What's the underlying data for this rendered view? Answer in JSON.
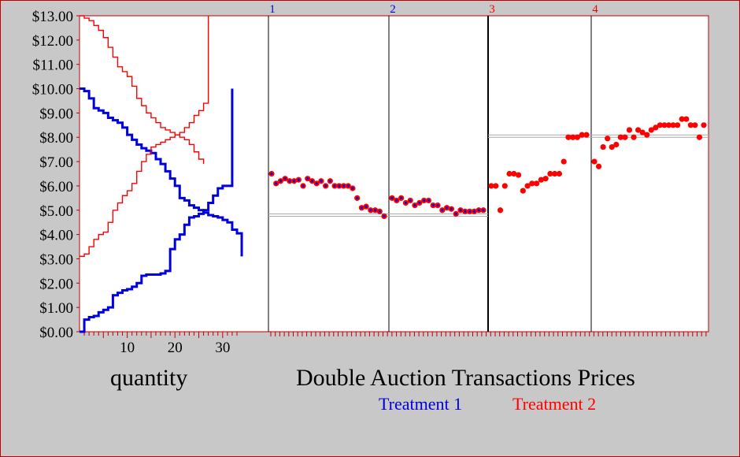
{
  "colors": {
    "background": "#c8c8c8",
    "plot_bg": "#ffffff",
    "border": "#c00000",
    "treatment1": "#0000dd",
    "treatment2": "#ff0000",
    "text": "#000000"
  },
  "labels": {
    "quantity": "quantity",
    "title": "Double Auction Transactions Prices",
    "legend_t1": "Treatment 1",
    "legend_t2": "Treatment 2"
  },
  "chart_data": [
    {
      "type": "line",
      "subtype": "supply-demand step",
      "xlabel": "quantity",
      "xlim": [
        0,
        33
      ],
      "ylim": [
        0,
        13
      ],
      "y_ticks": [
        "$0.00",
        "$1.00",
        "$2.00",
        "$3.00",
        "$4.00",
        "$5.00",
        "$6.00",
        "$7.00",
        "$8.00",
        "$9.00",
        "$10.00",
        "$11.00",
        "$12.00",
        "$13.00"
      ],
      "x_ticks": [
        "10",
        "20",
        "30"
      ],
      "series": [
        {
          "color": "#0000dd",
          "role": "demand",
          "treatment": 1,
          "steps": [
            10.0,
            9.9,
            9.6,
            9.2,
            9.1,
            9.0,
            8.8,
            8.7,
            8.6,
            8.4,
            8.1,
            7.9,
            7.7,
            7.55,
            7.45,
            7.35,
            7.1,
            6.9,
            6.6,
            6.3,
            6.0,
            5.5,
            5.4,
            5.2,
            5.1,
            5.0,
            4.9,
            4.8,
            4.75,
            4.7,
            4.6,
            4.5,
            4.2,
            4.05
          ]
        },
        {
          "color": "#0000dd",
          "role": "supply",
          "treatment": 1,
          "steps": [
            0.0,
            0.5,
            0.6,
            0.65,
            0.8,
            0.9,
            1.0,
            1.5,
            1.6,
            1.7,
            1.75,
            1.85,
            2.0,
            2.3,
            2.35,
            2.35,
            2.35,
            2.4,
            2.5,
            3.4,
            3.8,
            4.0,
            4.4,
            4.7,
            4.75,
            4.85,
            5.0,
            5.3,
            5.6,
            5.9,
            6.0,
            6.0
          ]
        },
        {
          "color": "#ff0000",
          "role": "demand",
          "treatment": 2,
          "steps": [
            13.0,
            12.9,
            12.8,
            12.6,
            12.4,
            12.1,
            11.7,
            11.3,
            10.9,
            10.7,
            10.5,
            10.1,
            9.6,
            9.3,
            9.0,
            8.8,
            8.6,
            8.4,
            8.3,
            8.2,
            8.1,
            8.0,
            7.9,
            7.7,
            7.4,
            7.1
          ]
        },
        {
          "color": "#ff0000",
          "role": "supply",
          "treatment": 2,
          "steps": [
            3.1,
            3.2,
            3.5,
            3.8,
            4.0,
            4.1,
            4.5,
            5.0,
            5.3,
            5.6,
            5.8,
            6.1,
            6.6,
            7.0,
            7.3,
            7.6,
            7.7,
            7.8,
            7.9,
            8.0,
            8.1,
            8.2,
            8.4,
            8.6,
            8.9,
            9.1,
            9.4
          ]
        }
      ]
    },
    {
      "type": "scatter",
      "title": "Double Auction Transactions Prices",
      "ylim": [
        0,
        13
      ],
      "periods": [
        "1",
        "2",
        "3",
        "4"
      ],
      "equilibrium_lines": [
        {
          "period_range": [
            1,
            2
          ],
          "value": 4.8
        },
        {
          "period_range": [
            3,
            4
          ],
          "value": 8.05
        }
      ],
      "series": [
        {
          "name": "Treatment 1",
          "marker_color": "#ff0000",
          "marker_center": "#0000dd",
          "period": 1,
          "values": [
            6.5,
            6.1,
            6.2,
            6.3,
            6.2,
            6.2,
            6.25,
            6.0,
            6.3,
            6.2,
            6.1,
            6.2,
            6.0,
            6.2,
            6.0,
            6.0,
            6.0,
            6.0,
            5.9,
            5.5,
            5.1,
            5.15,
            5.0,
            5.0,
            4.95,
            4.75
          ]
        },
        {
          "name": "Treatment 1",
          "marker_color": "#ff0000",
          "marker_center": "#0000dd",
          "period": 2,
          "values": [
            5.5,
            5.4,
            5.5,
            5.3,
            5.4,
            5.2,
            5.3,
            5.4,
            5.4,
            5.2,
            5.2,
            5.0,
            5.1,
            5.05,
            4.85,
            5.0,
            4.95,
            4.95,
            4.95,
            5.0,
            5.0
          ]
        },
        {
          "name": "Treatment 2",
          "marker_color": "#ff0000",
          "period": 3,
          "values": [
            6.0,
            6.0,
            5.0,
            6.0,
            6.5,
            6.5,
            6.45,
            5.8,
            6.0,
            6.1,
            6.1,
            6.25,
            6.3,
            6.5,
            6.5,
            6.5,
            7.0,
            8.0,
            8.0,
            8.0,
            8.1,
            8.1
          ]
        },
        {
          "name": "Treatment 2",
          "marker_color": "#ff0000",
          "period": 4,
          "values": [
            7.0,
            6.8,
            7.6,
            7.95,
            7.6,
            7.7,
            8.0,
            8.0,
            8.3,
            8.0,
            8.3,
            8.2,
            8.1,
            8.3,
            8.4,
            8.5,
            8.5,
            8.5,
            8.5,
            8.5,
            8.75,
            8.75,
            8.5,
            8.5,
            8.0,
            8.5
          ]
        }
      ]
    }
  ]
}
